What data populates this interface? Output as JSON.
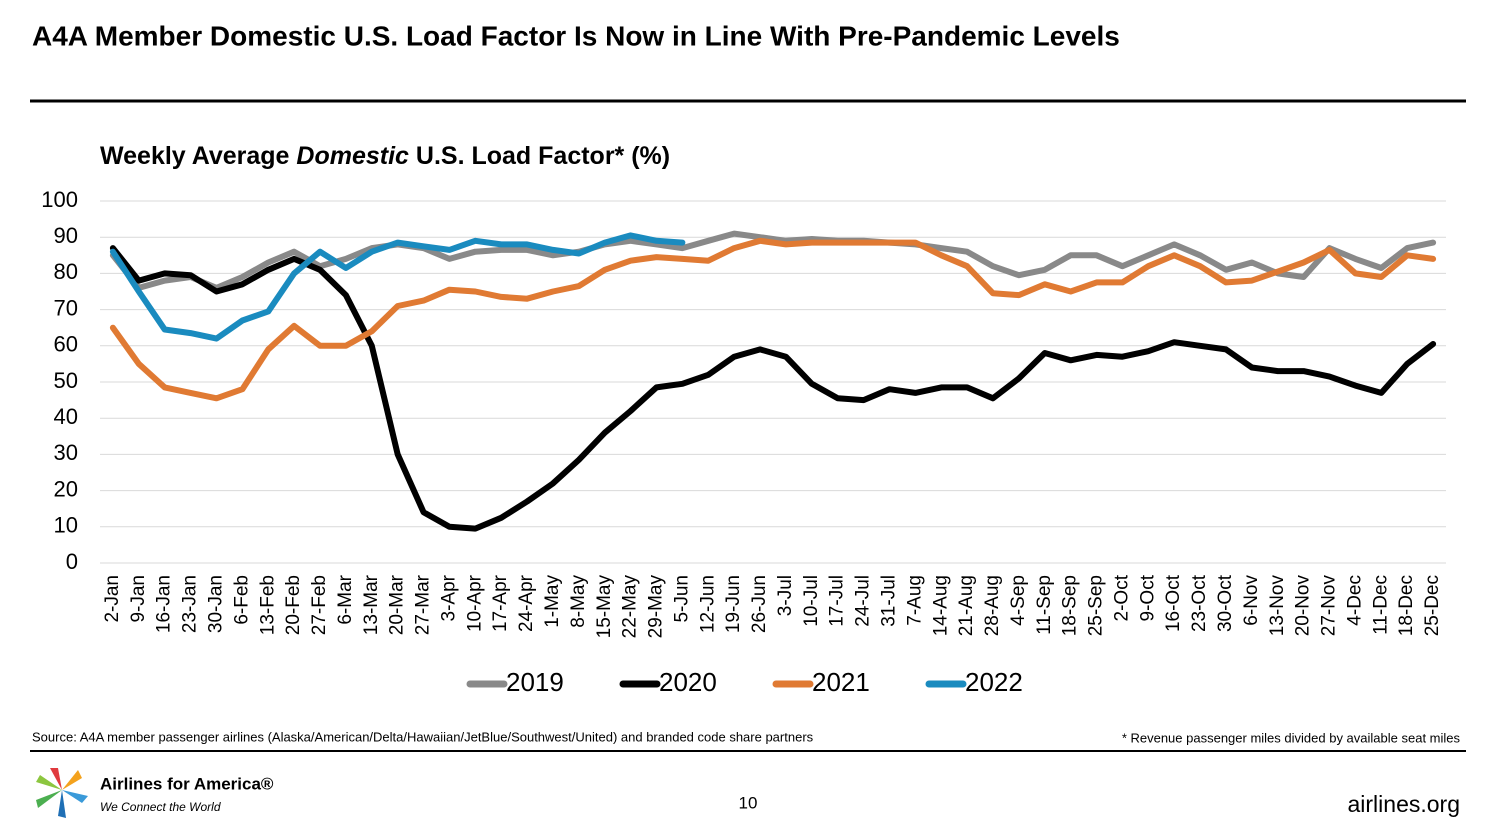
{
  "slide": {
    "header": "A4A Member Domestic U.S. Load Factor Is Now in Line With Pre-Pandemic Levels",
    "source": "Source: A4A member passenger airlines (Alaska/American/Delta/Hawaiian/JetBlue/Southwest/United) and branded code share partners",
    "footnote": "* Revenue passenger miles divided by available seat miles",
    "logo_name": "Airlines for America®",
    "logo_tagline": "We Connect the World",
    "page_number": "10",
    "website": "airlines.org"
  },
  "chart_data": {
    "type": "line",
    "title": [
      "Weekly Average ",
      "Domestic",
      " U.S. Load Factor* (%)"
    ],
    "categories": [
      "2-Jan",
      "9-Jan",
      "16-Jan",
      "23-Jan",
      "30-Jan",
      "6-Feb",
      "13-Feb",
      "20-Feb",
      "27-Feb",
      "6-Mar",
      "13-Mar",
      "20-Mar",
      "27-Mar",
      "3-Apr",
      "10-Apr",
      "17-Apr",
      "24-Apr",
      "1-May",
      "8-May",
      "15-May",
      "22-May",
      "29-May",
      "5-Jun",
      "12-Jun",
      "19-Jun",
      "26-Jun",
      "3-Jul",
      "10-Jul",
      "17-Jul",
      "24-Jul",
      "31-Jul",
      "7-Aug",
      "14-Aug",
      "21-Aug",
      "28-Aug",
      "4-Sep",
      "11-Sep",
      "18-Sep",
      "25-Sep",
      "2-Oct",
      "9-Oct",
      "16-Oct",
      "23-Oct",
      "30-Oct",
      "6-Nov",
      "13-Nov",
      "20-Nov",
      "27-Nov",
      "4-Dec",
      "11-Dec",
      "18-Dec",
      "25-Dec"
    ],
    "series": [
      {
        "name": "2019",
        "color": "#898989",
        "values": [
          85,
          76,
          78,
          79,
          76,
          79,
          83,
          86,
          82,
          84,
          87,
          88,
          87,
          84,
          86,
          86.5,
          86.5,
          85,
          86,
          88,
          89,
          88,
          87,
          89,
          91,
          90,
          89,
          89.5,
          89,
          89,
          88.5,
          88,
          87,
          86,
          82,
          79.5,
          81,
          85,
          85,
          82,
          85,
          88,
          85,
          81,
          83,
          80,
          79,
          87,
          84,
          81.5,
          87,
          88.5
        ]
      },
      {
        "name": "2020",
        "color": "#000000",
        "values": [
          87,
          78,
          80,
          79.5,
          75,
          77,
          81,
          84,
          81,
          74,
          60,
          30,
          14,
          10,
          9.5,
          12.5,
          17,
          22,
          28.5,
          36,
          42,
          48.5,
          49.5,
          52,
          57,
          59,
          57,
          49.5,
          45.5,
          45,
          48,
          47,
          48.5,
          48.5,
          45.5,
          51,
          58,
          56,
          57.5,
          57,
          58.5,
          61,
          60,
          59,
          54,
          53,
          53,
          51.5,
          49,
          47,
          55,
          60.5
        ]
      },
      {
        "name": "2021",
        "color": "#e07a33",
        "values": [
          65,
          55,
          48.5,
          47,
          45.5,
          48,
          59,
          65.5,
          60,
          60,
          64,
          71,
          72.5,
          75.5,
          75,
          73.5,
          73,
          75,
          76.5,
          81,
          83.5,
          84.5,
          84,
          83.5,
          87,
          89,
          88,
          88.5,
          88.5,
          88.5,
          88.5,
          88.5,
          85,
          82,
          74.5,
          74,
          77,
          75,
          77.5,
          77.5,
          82,
          85,
          82,
          77.5,
          78,
          80.5,
          83,
          86.5,
          80,
          79,
          85,
          84
        ]
      },
      {
        "name": "2022",
        "color": "#1a8bbf",
        "values": [
          86,
          75,
          64.5,
          63.5,
          62,
          67,
          69.5,
          80,
          86,
          81.5,
          86,
          88.5,
          87.5,
          86.5,
          89,
          88,
          88,
          86.5,
          85.5,
          88.5,
          90.5,
          89,
          88.5,
          null,
          null,
          null,
          null,
          null,
          null,
          null,
          null,
          null,
          null,
          null,
          null,
          null,
          null,
          null,
          null,
          null,
          null,
          null,
          null,
          null,
          null,
          null,
          null,
          null,
          null,
          null,
          null,
          null
        ]
      }
    ],
    "ylim": [
      0,
      100
    ],
    "yticks": [
      0,
      10,
      20,
      30,
      40,
      50,
      60,
      70,
      80,
      90,
      100
    ],
    "grid": true,
    "legend": "bottom"
  }
}
